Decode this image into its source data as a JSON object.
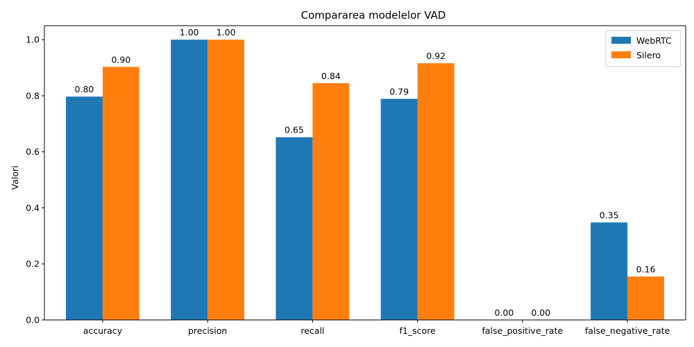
{
  "chart_data": {
    "type": "bar",
    "title": "Compararea modelelor VAD",
    "xlabel": "",
    "ylabel": "Valori",
    "ylim": [
      0,
      1.05
    ],
    "yticks": [
      "0.0",
      "0.2",
      "0.4",
      "0.6",
      "0.8",
      "1.0"
    ],
    "categories": [
      "accuracy",
      "precision",
      "recall",
      "f1_score",
      "false_positive_rate",
      "false_negative_rate"
    ],
    "series": [
      {
        "name": "WebRTC",
        "color": "#1f77b4",
        "values": [
          0.797,
          1.0,
          0.652,
          0.789,
          0.0,
          0.348
        ],
        "labels": [
          "0.80",
          "1.00",
          "0.65",
          "0.79",
          "0.00",
          "0.35"
        ]
      },
      {
        "name": "Silero",
        "color": "#ff7f0e",
        "values": [
          0.903,
          1.0,
          0.845,
          0.916,
          0.0,
          0.155
        ],
        "labels": [
          "0.90",
          "1.00",
          "0.84",
          "0.92",
          "0.00",
          "0.16"
        ]
      }
    ],
    "legend": "top-right",
    "grid": false
  }
}
